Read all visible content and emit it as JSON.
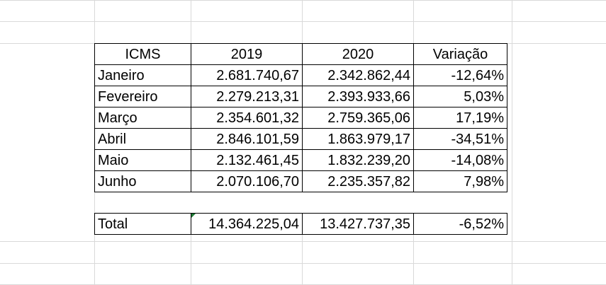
{
  "table": {
    "headers": [
      "ICMS",
      "2019",
      "2020",
      "Variação"
    ],
    "rows": [
      [
        "Janeiro",
        "2.681.740,67",
        "2.342.862,44",
        "-12,64%"
      ],
      [
        "Fevereiro",
        "2.279.213,31",
        "2.393.933,66",
        "5,03%"
      ],
      [
        "Março",
        "2.354.601,32",
        "2.759.365,06",
        "17,19%"
      ],
      [
        "Abril",
        "2.846.101,59",
        "1.863.979,17",
        "-34,51%"
      ],
      [
        "Maio",
        "2.132.461,45",
        "1.832.239,20",
        "-14,08%"
      ],
      [
        "Junho",
        "2.070.106,70",
        "2.235.357,82",
        "7,98%"
      ]
    ],
    "total": [
      "Total",
      "14.364.225,04",
      "13.427.737,35",
      "-6,52%"
    ]
  },
  "colors": {
    "gridline": "#d9d9d9",
    "cell_marker": "#1e7b34"
  }
}
